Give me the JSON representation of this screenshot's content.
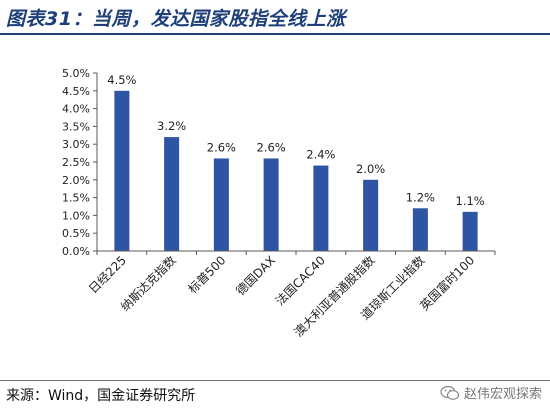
{
  "title": "图表31：当周，发达国家股指全线上涨",
  "source": "来源：Wind，国金证券研究所",
  "watermark": "赵伟宏观探索",
  "colors": {
    "bar": "#2e55a3",
    "title": "#1f3f7a",
    "axis": "#595959"
  },
  "chart_data": {
    "type": "bar",
    "categories": [
      "日经225",
      "纳斯达克指数",
      "标普500",
      "德国DAX",
      "法国CAC40",
      "澳大利亚普通股指数",
      "道琼斯工业指数",
      "英国富时100"
    ],
    "values": [
      4.5,
      3.2,
      2.6,
      2.6,
      2.4,
      2.0,
      1.2,
      1.1
    ],
    "data_labels": [
      "4.5%",
      "3.2%",
      "2.6%",
      "2.6%",
      "2.4%",
      "2.0%",
      "1.2%",
      "1.1%"
    ],
    "y_ticks": [
      "0.0%",
      "0.5%",
      "1.0%",
      "1.5%",
      "2.0%",
      "2.5%",
      "3.0%",
      "3.5%",
      "4.0%",
      "4.5%",
      "5.0%"
    ],
    "ylim": [
      0,
      5.0
    ],
    "grid": false,
    "legend": "none"
  }
}
